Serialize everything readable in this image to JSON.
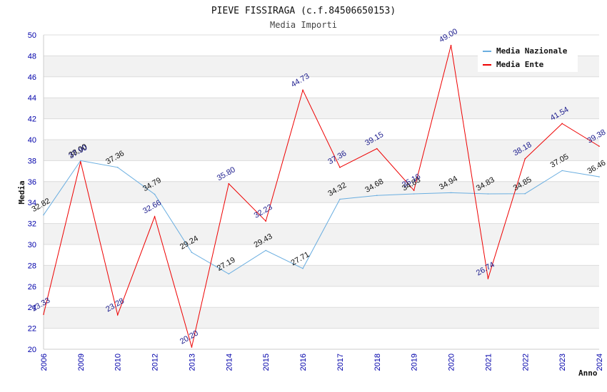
{
  "chart_data": {
    "type": "line",
    "title": "PIEVE FISSIRAGA (c.f.84506650153)",
    "subtitle": "Media Importi",
    "xlabel": "Anno",
    "ylabel": "Media",
    "ylim": [
      20,
      50
    ],
    "ytick_step": 2,
    "grid": "horizontal, alternating bands",
    "legend_position": "top-right",
    "categories": [
      "2006",
      "2009",
      "2010",
      "2012",
      "2013",
      "2014",
      "2015",
      "2016",
      "2017",
      "2018",
      "2019",
      "2020",
      "2021",
      "2022",
      "2023",
      "2024"
    ],
    "series": [
      {
        "name": "Media Nazionale",
        "color": "#6aaee0",
        "values": [
          32.82,
          38.0,
          37.36,
          34.79,
          29.24,
          27.19,
          29.43,
          27.71,
          34.32,
          34.68,
          34.83,
          34.94,
          34.83,
          34.85,
          37.05,
          36.46
        ],
        "labels": [
          "32.82",
          "38.00",
          "37.36",
          "34.79",
          "29.24",
          "27.19",
          "29.43",
          "27.71",
          "34.32",
          "34.68",
          "34.83",
          "34.94",
          "34.83",
          "34.85",
          "37.05",
          "36.46"
        ]
      },
      {
        "name": "Media Ente",
        "color": "#ee0000",
        "values": [
          23.33,
          37.9,
          23.28,
          32.66,
          20.2,
          35.8,
          32.23,
          44.73,
          37.36,
          39.15,
          35.16,
          49.0,
          26.74,
          38.18,
          41.54,
          39.38
        ],
        "labels": [
          "23.33",
          "37.90",
          "23.28",
          "32.66",
          "20.20",
          "35.80",
          "32.23",
          "44.73",
          "37.36",
          "39.15",
          "35.16",
          "49.00",
          "26.74",
          "38.18",
          "41.54",
          "39.38"
        ]
      }
    ]
  }
}
